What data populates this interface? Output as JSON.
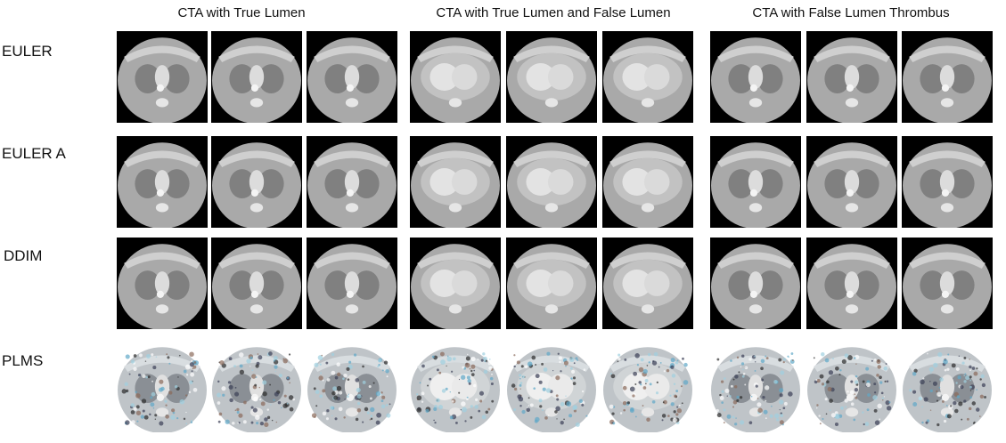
{
  "column_headers": [
    "CTA with True Lumen",
    "CTA with True Lumen and False Lumen",
    "CTA with False Lumen Thrombus"
  ],
  "row_labels": [
    "EULER",
    "EULER A",
    "DDIM",
    "PLMS"
  ],
  "images": {
    "description_kind": "axial chest CT angiography slices",
    "style_by_row": [
      "clean-grayscale",
      "clean-grayscale",
      "clean-grayscale",
      "noisy-artifacts"
    ],
    "style_by_column": [
      "upper-chest",
      "heart-level",
      "upper-chest"
    ]
  }
}
